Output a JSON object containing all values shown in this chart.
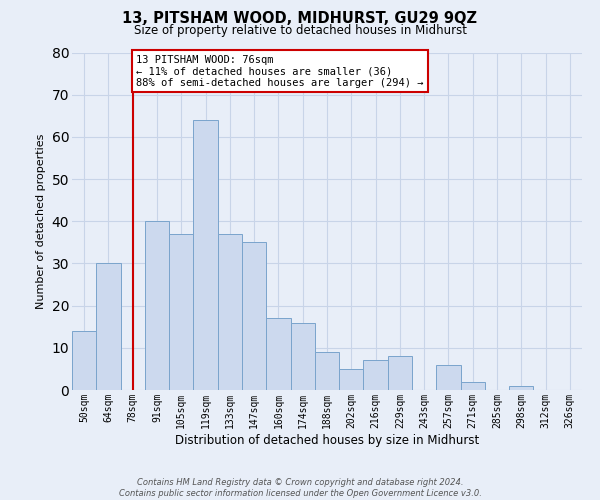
{
  "title": "13, PITSHAM WOOD, MIDHURST, GU29 9QZ",
  "subtitle": "Size of property relative to detached houses in Midhurst",
  "xlabel": "Distribution of detached houses by size in Midhurst",
  "ylabel": "Number of detached properties",
  "bin_labels": [
    "50sqm",
    "64sqm",
    "78sqm",
    "91sqm",
    "105sqm",
    "119sqm",
    "133sqm",
    "147sqm",
    "160sqm",
    "174sqm",
    "188sqm",
    "202sqm",
    "216sqm",
    "229sqm",
    "243sqm",
    "257sqm",
    "271sqm",
    "285sqm",
    "298sqm",
    "312sqm",
    "326sqm"
  ],
  "bar_heights": [
    14,
    30,
    0,
    40,
    37,
    64,
    37,
    35,
    17,
    16,
    9,
    5,
    7,
    8,
    0,
    6,
    2,
    0,
    1,
    0,
    0
  ],
  "bar_color": "#ccd9ee",
  "bar_edge_color": "#7aa4cc",
  "grid_color": "#c8d4e8",
  "background_color": "#e8eef8",
  "vline_x": 2,
  "vline_color": "#cc0000",
  "annotation_text": "13 PITSHAM WOOD: 76sqm\n← 11% of detached houses are smaller (36)\n88% of semi-detached houses are larger (294) →",
  "annotation_box_color": "#ffffff",
  "annotation_box_edge": "#cc0000",
  "ylim": [
    0,
    80
  ],
  "yticks": [
    0,
    10,
    20,
    30,
    40,
    50,
    60,
    70,
    80
  ],
  "footer_line1": "Contains HM Land Registry data © Crown copyright and database right 2024.",
  "footer_line2": "Contains public sector information licensed under the Open Government Licence v3.0."
}
